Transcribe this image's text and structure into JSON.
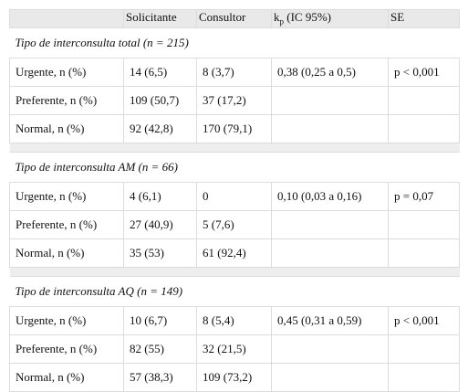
{
  "table": {
    "header": [
      "Solicitante",
      "Consultor",
      {
        "main": "k",
        "sub": "p",
        "rest": " (IC 95%)"
      },
      "SE"
    ],
    "sections": [
      {
        "title": "Tipo de interconsulta total (n = 215)",
        "rows": [
          [
            "Urgente, n (%)",
            "14 (6,5)",
            "8 (3,7)",
            "0,38 (0,25 a 0,5)",
            "p < 0,001"
          ],
          [
            "Preferente, n (%)",
            "109 (50,7)",
            "37 (17,2)",
            null,
            null
          ],
          [
            "Normal, n (%)",
            "92 (42,8)",
            "170 (79,1)",
            null,
            null
          ]
        ]
      },
      {
        "title": "Tipo de interconsulta AM (n = 66)",
        "rows": [
          [
            "Urgente, n (%)",
            "4 (6,1)",
            "0",
            "0,10 (0,03 a 0,16)",
            "p = 0,07"
          ],
          [
            "Preferente, n (%)",
            "27 (40,9)",
            "5 (7,6)",
            null,
            null
          ],
          [
            "Normal, n (%)",
            "35 (53)",
            "61 (92,4)",
            null,
            null
          ]
        ]
      },
      {
        "title": "Tipo de interconsulta AQ (n = 149)",
        "rows": [
          [
            "Urgente, n (%)",
            "10 (6,7)",
            "8 (5,4)",
            "0,45 (0,31 a 0,59)",
            "p < 0,001"
          ],
          [
            "Preferente, n (%)",
            "82 (55)",
            "32 (21,5)",
            null,
            null
          ],
          [
            "Normal, n (%)",
            "57 (38,3)",
            "109 (73,2)",
            null,
            null
          ]
        ]
      }
    ]
  }
}
